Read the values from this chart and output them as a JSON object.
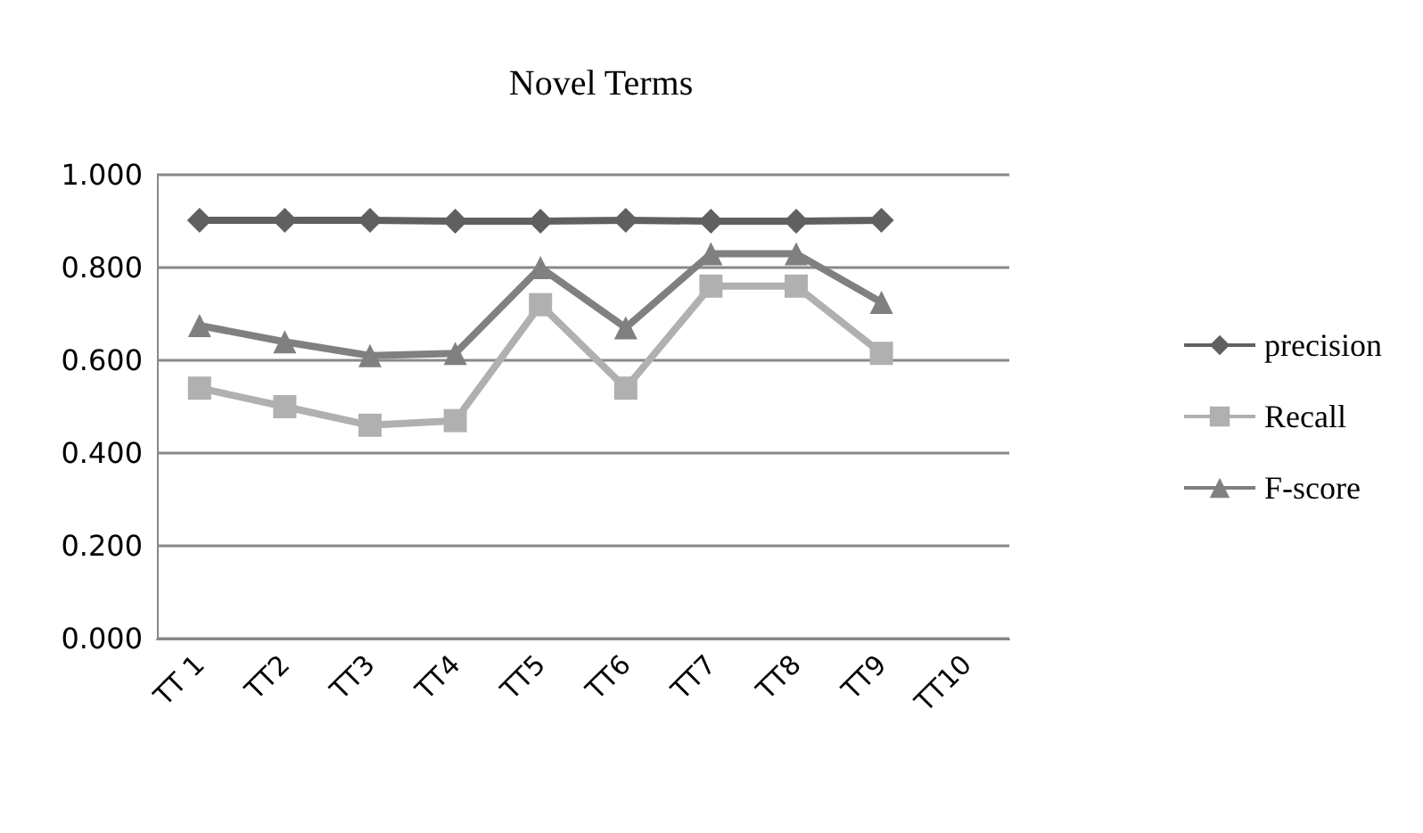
{
  "chart_data": {
    "type": "line",
    "title": "Novel Terms",
    "categories": [
      "TT 1",
      "TT2",
      "TT3",
      "TT4",
      "TT5",
      "TT6",
      "TT7",
      "TT8",
      "TT9",
      "TT10"
    ],
    "series": [
      {
        "name": "precision",
        "color": "#606060",
        "marker": "diamond",
        "values": [
          0.902,
          0.902,
          0.902,
          0.9,
          0.9,
          0.902,
          0.9,
          0.9,
          0.902,
          null
        ]
      },
      {
        "name": "Recall",
        "color": "#b0b0b0",
        "marker": "square",
        "values": [
          0.54,
          0.5,
          0.46,
          0.47,
          0.72,
          0.54,
          0.76,
          0.76,
          0.615,
          null
        ]
      },
      {
        "name": "F-score",
        "color": "#808080",
        "marker": "triangle",
        "values": [
          0.675,
          0.64,
          0.61,
          0.615,
          0.8,
          0.67,
          0.83,
          0.83,
          0.725,
          null
        ]
      }
    ],
    "ylim": [
      0,
      1
    ],
    "yticks": [
      {
        "value": 0,
        "label": "0.000"
      },
      {
        "value": 0.2,
        "label": "0.200"
      },
      {
        "value": 0.4,
        "label": "0.400"
      },
      {
        "value": 0.6,
        "label": "0.600"
      },
      {
        "value": 0.8,
        "label": "0.800"
      },
      {
        "value": 1,
        "label": "1.000"
      }
    ],
    "grid": "y",
    "legend": "right"
  }
}
